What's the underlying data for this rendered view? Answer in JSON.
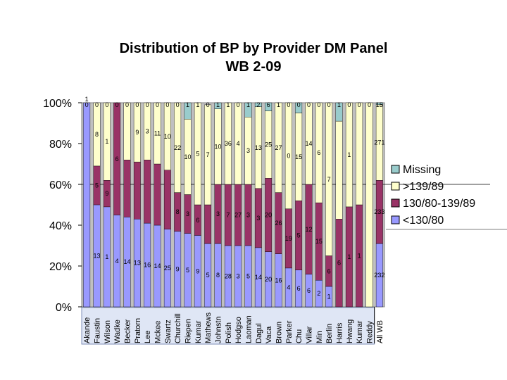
{
  "chart_data": {
    "type": "bar",
    "stacked": "percent",
    "title": "Distribution of BP by Provider DM Panel",
    "subtitle": "WB 2-09",
    "xlabel": "",
    "ylabel": "",
    "ylim": [
      0,
      100
    ],
    "y_ticks": [
      "0%",
      "20%",
      "40%",
      "60%",
      "80%",
      "100%"
    ],
    "grid": false,
    "legend_position": "right",
    "categories": [
      "Akande",
      "Faustin",
      "Wilson",
      "Wadke",
      "Becker",
      "Pratorn",
      "Lee",
      "Mckee",
      "Swartz",
      "Churchill",
      "Riepen",
      "Kumar",
      "Mathews",
      "Johnstn",
      "Polish",
      "Hodgso",
      "Laoman",
      "Dagul",
      "Vaca",
      "Brown",
      "Parker",
      "Chu",
      "Villar",
      "Min",
      "Berlin",
      "Harris",
      "Hwang",
      "Kumar",
      "Reddy",
      "All WB"
    ],
    "series": [
      {
        "name": "<130/80",
        "color": "#9999ff",
        "values": [
          100,
          50,
          49,
          45,
          44,
          43,
          41,
          40,
          38,
          37,
          36,
          35,
          31,
          31,
          30,
          30,
          30,
          29,
          27,
          26,
          19,
          18,
          16,
          13,
          10,
          0,
          0,
          0,
          0,
          31
        ]
      },
      {
        "name": "130/80-139/89",
        "color": "#993366",
        "values": [
          0,
          19,
          13,
          55,
          28,
          28,
          31,
          30,
          29,
          19,
          19,
          15,
          19,
          29,
          30,
          30,
          30,
          29,
          36,
          30,
          29,
          34,
          44,
          38,
          15,
          43,
          49,
          50,
          0,
          31
        ]
      },
      {
        "name": ">139/89",
        "color": "#ffffcc",
        "values": [
          0,
          31,
          38,
          0,
          28,
          29,
          28,
          30,
          33,
          44,
          37,
          50,
          49,
          37,
          40,
          40,
          33,
          40,
          33,
          44,
          52,
          43,
          40,
          49,
          75,
          48,
          51,
          50,
          100,
          37
        ]
      },
      {
        "name": "Missing",
        "color": "#99cccc",
        "values": [
          0,
          0,
          0,
          0,
          0,
          0,
          0,
          0,
          0,
          0,
          8,
          0,
          0,
          3,
          0,
          0,
          7,
          2,
          4,
          0,
          0,
          5,
          0,
          0,
          0,
          9,
          0,
          0,
          0,
          1
        ]
      }
    ],
    "data_labels": {
      "<130/80": [
        "",
        "13",
        "1",
        "4",
        "14",
        "13",
        "16",
        "14",
        "25",
        "9",
        "5",
        "9",
        "5",
        "8",
        "28",
        "3",
        "5",
        "14",
        "20",
        "16",
        "4",
        "6",
        "6",
        "2",
        "1",
        "0",
        "0",
        "0",
        "0",
        "232"
      ],
      "130/80-139/89": [
        "1",
        "5",
        "9",
        "6",
        "",
        "",
        "",
        "",
        "",
        "8",
        "3",
        "6",
        "",
        "3",
        "7",
        "27",
        "3",
        "3",
        "20",
        "26",
        "19",
        "5",
        "12",
        "15",
        "6",
        "6",
        "1",
        "1",
        "",
        "233"
      ],
      ">139/89": [
        "",
        "8",
        "1",
        "",
        "",
        "9",
        "3",
        "11",
        "10",
        "22",
        "10",
        "5",
        "7",
        "10",
        "36",
        "4",
        "3",
        "13",
        "25",
        "27",
        "0",
        "15",
        "14",
        "6",
        "7",
        "",
        "1",
        "",
        "",
        "271"
      ],
      "Missing": [
        "0",
        "0",
        "0",
        "0",
        "0",
        "0",
        "0",
        "0",
        "0",
        "0",
        "1",
        "1",
        "0",
        "1",
        "1",
        "0",
        "1",
        "2",
        "6",
        "1",
        "0",
        "0",
        "0",
        "0",
        "0",
        "1",
        "0",
        "0",
        "0",
        "15"
      ]
    }
  }
}
